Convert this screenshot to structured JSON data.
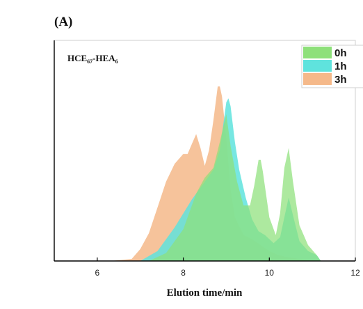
{
  "panel_label": "(A)",
  "chart_data": {
    "type": "area",
    "title": "",
    "xlabel": "Elution time/min",
    "ylabel": "",
    "xlim": [
      5,
      12
    ],
    "ylim": [
      0,
      1
    ],
    "x_ticks": [
      6,
      8,
      10,
      12
    ],
    "grid": false,
    "legend_position": "top-right",
    "annotation": {
      "base": "HCE",
      "sub1": "67",
      "mid": "-HEA",
      "sub2": "6"
    },
    "series": [
      {
        "name": "3h",
        "color": "#f5b98a",
        "points": [
          [
            6.3,
            0.0
          ],
          [
            6.8,
            0.01
          ],
          [
            7.0,
            0.06
          ],
          [
            7.2,
            0.14
          ],
          [
            7.4,
            0.27
          ],
          [
            7.6,
            0.4
          ],
          [
            7.8,
            0.49
          ],
          [
            8.0,
            0.54
          ],
          [
            8.1,
            0.54
          ],
          [
            8.2,
            0.59
          ],
          [
            8.3,
            0.64
          ],
          [
            8.4,
            0.57
          ],
          [
            8.5,
            0.48
          ],
          [
            8.6,
            0.56
          ],
          [
            8.7,
            0.71
          ],
          [
            8.8,
            0.88
          ],
          [
            8.85,
            0.88
          ],
          [
            8.9,
            0.83
          ],
          [
            9.0,
            0.62
          ],
          [
            9.1,
            0.36
          ],
          [
            9.2,
            0.22
          ],
          [
            9.4,
            0.13
          ],
          [
            9.6,
            0.11
          ],
          [
            9.8,
            0.08
          ],
          [
            10.0,
            0.05
          ],
          [
            10.2,
            0.03
          ],
          [
            10.4,
            0.02
          ],
          [
            10.7,
            0.01
          ],
          [
            11.0,
            0.0
          ]
        ]
      },
      {
        "name": "1h",
        "color": "#5fe3dd",
        "points": [
          [
            7.0,
            0.0
          ],
          [
            7.4,
            0.05
          ],
          [
            7.8,
            0.17
          ],
          [
            8.2,
            0.31
          ],
          [
            8.5,
            0.4
          ],
          [
            8.7,
            0.46
          ],
          [
            8.85,
            0.56
          ],
          [
            9.0,
            0.8
          ],
          [
            9.05,
            0.82
          ],
          [
            9.1,
            0.78
          ],
          [
            9.2,
            0.6
          ],
          [
            9.3,
            0.46
          ],
          [
            9.45,
            0.32
          ],
          [
            9.6,
            0.21
          ],
          [
            9.75,
            0.15
          ],
          [
            9.9,
            0.13
          ],
          [
            10.1,
            0.09
          ],
          [
            10.25,
            0.12
          ],
          [
            10.35,
            0.22
          ],
          [
            10.45,
            0.32
          ],
          [
            10.55,
            0.23
          ],
          [
            10.7,
            0.1
          ],
          [
            10.9,
            0.05
          ],
          [
            11.1,
            0.03
          ],
          [
            11.2,
            0.0
          ]
        ]
      },
      {
        "name": "0h",
        "color": "#8ee07a",
        "points": [
          [
            7.2,
            0.0
          ],
          [
            7.6,
            0.04
          ],
          [
            8.0,
            0.16
          ],
          [
            8.3,
            0.34
          ],
          [
            8.5,
            0.42
          ],
          [
            8.7,
            0.47
          ],
          [
            8.85,
            0.6
          ],
          [
            9.0,
            0.74
          ],
          [
            9.1,
            0.58
          ],
          [
            9.25,
            0.4
          ],
          [
            9.4,
            0.28
          ],
          [
            9.55,
            0.28
          ],
          [
            9.65,
            0.38
          ],
          [
            9.75,
            0.51
          ],
          [
            9.8,
            0.51
          ],
          [
            9.85,
            0.45
          ],
          [
            10.0,
            0.22
          ],
          [
            10.15,
            0.13
          ],
          [
            10.25,
            0.24
          ],
          [
            10.35,
            0.47
          ],
          [
            10.45,
            0.57
          ],
          [
            10.55,
            0.4
          ],
          [
            10.7,
            0.18
          ],
          [
            10.9,
            0.08
          ],
          [
            11.1,
            0.03
          ],
          [
            11.2,
            0.0
          ]
        ]
      }
    ]
  }
}
